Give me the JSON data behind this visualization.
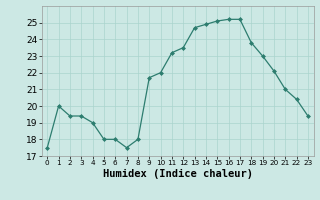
{
  "x": [
    0,
    1,
    2,
    3,
    4,
    5,
    6,
    7,
    8,
    9,
    10,
    11,
    12,
    13,
    14,
    15,
    16,
    17,
    18,
    19,
    20,
    21,
    22,
    23
  ],
  "y": [
    17.5,
    20.0,
    19.4,
    19.4,
    19.0,
    18.0,
    18.0,
    17.5,
    18.0,
    21.7,
    22.0,
    23.2,
    23.5,
    24.7,
    24.9,
    25.1,
    25.2,
    25.2,
    23.8,
    23.0,
    22.1,
    21.0,
    20.4,
    19.4
  ],
  "xlabel": "Humidex (Indice chaleur)",
  "ylim": [
    17,
    26
  ],
  "xlim": [
    -0.5,
    23.5
  ],
  "yticks": [
    17,
    18,
    19,
    20,
    21,
    22,
    23,
    24,
    25
  ],
  "xtick_labels": [
    "0",
    "1",
    "2",
    "3",
    "4",
    "5",
    "6",
    "7",
    "8",
    "9",
    "10",
    "11",
    "12",
    "13",
    "14",
    "15",
    "16",
    "17",
    "18",
    "19",
    "20",
    "21",
    "22",
    "23"
  ],
  "line_color": "#2d7d6f",
  "marker": "D",
  "marker_size": 2.0,
  "bg_color": "#cce8e4",
  "grid_color": "#aad4ce",
  "xlabel_fontsize": 7.5,
  "ytick_fontsize": 6.5,
  "xtick_fontsize": 5.2
}
